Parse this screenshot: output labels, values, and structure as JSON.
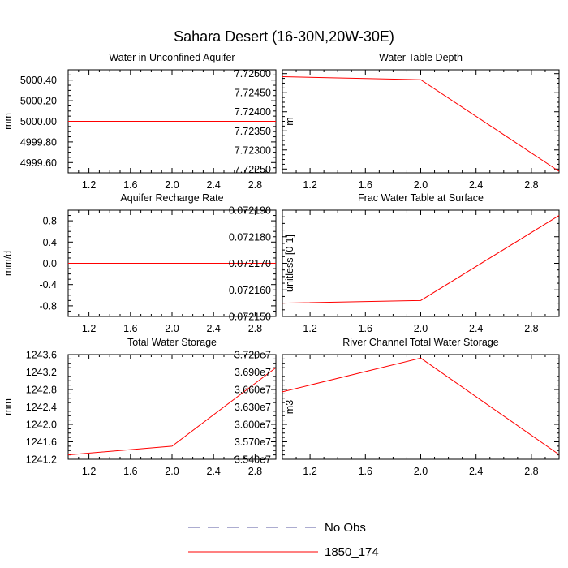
{
  "figure": {
    "title": "Sahara Desert (16-30N,20W-30E)",
    "legend": [
      {
        "label": "No Obs",
        "color": "#5a5aa0",
        "dash": true
      },
      {
        "label": "1850_174",
        "color": "#ff0000",
        "dash": false
      }
    ]
  },
  "chart_data": [
    {
      "type": "line",
      "title": "Water in Unconfined Aquifer",
      "ylabel": "mm",
      "xlim": [
        1,
        3
      ],
      "ylim": [
        4999.5,
        5000.5
      ],
      "xticks": [
        1.2,
        1.6,
        2.0,
        2.4,
        2.8
      ],
      "xtick_labels": [
        "1.2",
        "1.6",
        "2.0",
        "2.4",
        "2.8"
      ],
      "yticks": [
        5000.4,
        5000.2,
        5000.0,
        4999.8,
        4999.6
      ],
      "ytick_labels": [
        "5000.40",
        "5000.20",
        "5000.00",
        "4999.80",
        "4999.60"
      ],
      "series": [
        {
          "name": "1850_174",
          "color": "#ff0000",
          "x": [
            1,
            2,
            3
          ],
          "y": [
            5000.0,
            5000.0,
            5000.0
          ]
        }
      ]
    },
    {
      "type": "line",
      "title": "Water Table Depth",
      "ylabel": "m",
      "xlim": [
        1,
        3
      ],
      "ylim": [
        7.7224,
        7.7251
      ],
      "xticks": [
        1.2,
        1.6,
        2.0,
        2.4,
        2.8
      ],
      "xtick_labels": [
        "1.2",
        "1.6",
        "2.0",
        "2.4",
        "2.8"
      ],
      "yticks": [
        7.725,
        7.7245,
        7.724,
        7.7235,
        7.723,
        7.7225
      ],
      "ytick_labels": [
        "7.72500",
        "7.72450",
        "7.72400",
        "7.72350",
        "7.72300",
        "7.72250"
      ],
      "series": [
        {
          "name": "1850_174",
          "color": "#ff0000",
          "x": [
            1,
            2,
            3
          ],
          "y": [
            7.72492,
            7.72484,
            7.72244
          ]
        }
      ]
    },
    {
      "type": "line",
      "title": "Aquifer Recharge Rate",
      "ylabel": "mm/d",
      "xlim": [
        1,
        3
      ],
      "ylim": [
        -1,
        1
      ],
      "xticks": [
        1.2,
        1.6,
        2.0,
        2.4,
        2.8
      ],
      "xtick_labels": [
        "1.2",
        "1.6",
        "2.0",
        "2.4",
        "2.8"
      ],
      "yticks": [
        0.8,
        0.4,
        0.0,
        -0.4,
        -0.8
      ],
      "ytick_labels": [
        "0.8",
        "0.4",
        "0.0",
        "-0.4",
        "-0.8"
      ],
      "series": [
        {
          "name": "1850_174",
          "color": "#ff0000",
          "x": [
            1,
            2,
            3
          ],
          "y": [
            0,
            0,
            0
          ]
        }
      ]
    },
    {
      "type": "line",
      "title": "Frac Water Table at Surface",
      "ylabel": "unitless [0-1]",
      "xlim": [
        1,
        3
      ],
      "ylim": [
        0.07215,
        0.07219
      ],
      "xticks": [
        1.2,
        1.6,
        2.0,
        2.4,
        2.8
      ],
      "xtick_labels": [
        "1.2",
        "1.6",
        "2.0",
        "2.4",
        "2.8"
      ],
      "yticks": [
        0.07219,
        0.07218,
        0.07217,
        0.07216,
        0.07215
      ],
      "ytick_labels": [
        "0.072190",
        "0.072180",
        "0.072170",
        "0.072160",
        "0.072150"
      ],
      "series": [
        {
          "name": "1850_174",
          "color": "#ff0000",
          "x": [
            1,
            2,
            3
          ],
          "y": [
            0.072155,
            0.072156,
            0.072188
          ]
        }
      ]
    },
    {
      "type": "line",
      "title": "Total Water Storage",
      "ylabel": "mm",
      "xlim": [
        1,
        3
      ],
      "ylim": [
        1241.2,
        1243.6
      ],
      "xticks": [
        1.2,
        1.6,
        2.0,
        2.4,
        2.8
      ],
      "xtick_labels": [
        "1.2",
        "1.6",
        "2.0",
        "2.4",
        "2.8"
      ],
      "yticks": [
        1243.6,
        1243.2,
        1242.8,
        1242.4,
        1242.0,
        1241.6,
        1241.2
      ],
      "ytick_labels": [
        "1243.6",
        "1243.2",
        "1242.8",
        "1242.4",
        "1242.0",
        "1241.6",
        "1241.2"
      ],
      "series": [
        {
          "name": "1850_174",
          "color": "#ff0000",
          "x": [
            1,
            2,
            3
          ],
          "y": [
            1241.3,
            1241.5,
            1243.3
          ]
        }
      ]
    },
    {
      "type": "line",
      "title": "River Channel Total Water Storage",
      "ylabel": "m3",
      "xlim": [
        1,
        3
      ],
      "ylim": [
        35400000,
        37200000
      ],
      "xticks": [
        1.2,
        1.6,
        2.0,
        2.4,
        2.8
      ],
      "xtick_labels": [
        "1.2",
        "1.6",
        "2.0",
        "2.4",
        "2.8"
      ],
      "yticks": [
        37200000,
        36900000,
        36600000,
        36300000,
        36000000,
        35700000,
        35400000
      ],
      "ytick_labels": [
        "3.720e7",
        "3.690e7",
        "3.660e7",
        "3.630e7",
        "3.600e7",
        "3.570e7",
        "3.540e7"
      ],
      "series": [
        {
          "name": "1850_174",
          "color": "#ff0000",
          "x": [
            1,
            2,
            3
          ],
          "y": [
            36560000,
            37140000,
            35480000
          ]
        }
      ]
    }
  ]
}
